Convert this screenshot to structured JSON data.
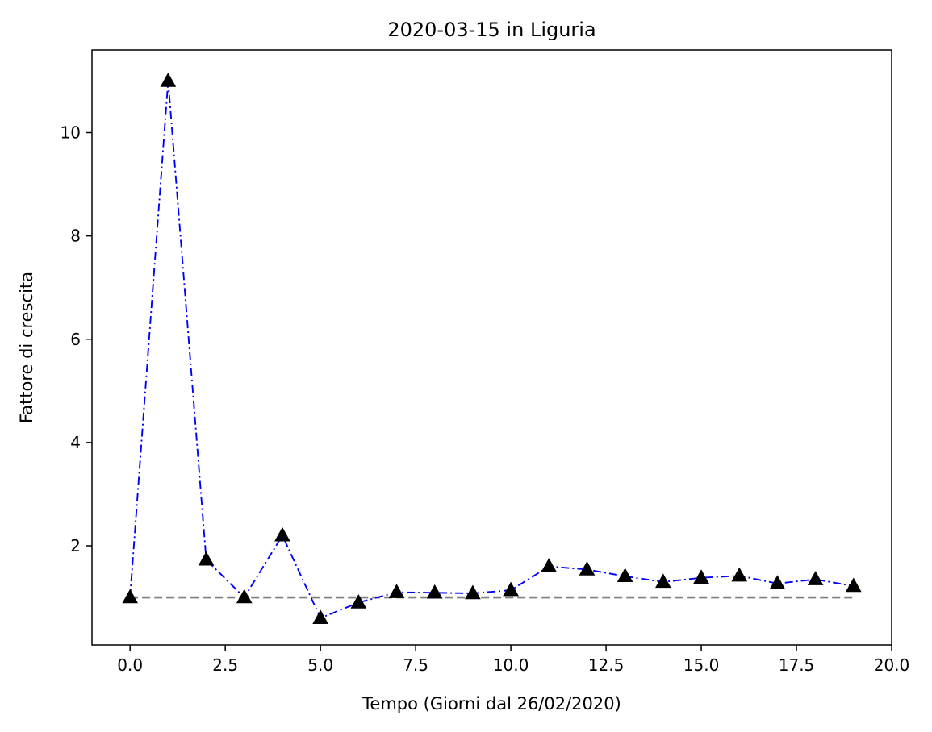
{
  "chart_data": {
    "type": "line",
    "title": "2020-03-15 in Liguria",
    "xlabel": "Tempo (Giorni dal 26/02/2020)",
    "ylabel": "Fattore di crescita",
    "xlim": [
      -1,
      20
    ],
    "ylim": [
      0.08,
      11.6
    ],
    "xticks": [
      0.0,
      2.5,
      5.0,
      7.5,
      10.0,
      12.5,
      15.0,
      17.5,
      20.0
    ],
    "xtick_labels": [
      "0.0",
      "2.5",
      "5.0",
      "7.5",
      "10.0",
      "12.5",
      "15.0",
      "17.5",
      "20.0"
    ],
    "yticks": [
      2,
      4,
      6,
      8,
      10
    ],
    "ytick_labels": [
      "2",
      "4",
      "6",
      "8",
      "10"
    ],
    "grid": false,
    "series": [
      {
        "x": [
          0,
          1,
          2,
          3,
          4,
          5,
          6,
          7,
          8,
          9,
          10,
          11,
          12,
          13,
          14,
          15,
          16,
          17,
          18,
          19
        ],
        "y": [
          1.0,
          11.0,
          1.73,
          1.0,
          2.2,
          0.6,
          0.9,
          1.1,
          1.09,
          1.08,
          1.14,
          1.6,
          1.54,
          1.41,
          1.3,
          1.38,
          1.42,
          1.27,
          1.35,
          1.22
        ],
        "color": "#0000ff",
        "line_style": "dashdot",
        "marker": "triangle-up",
        "marker_color": "#000000"
      }
    ],
    "reference_line": {
      "x": [
        0,
        19
      ],
      "y": [
        1.0,
        1.0
      ],
      "color": "#808080",
      "line_style": "dashed"
    }
  }
}
